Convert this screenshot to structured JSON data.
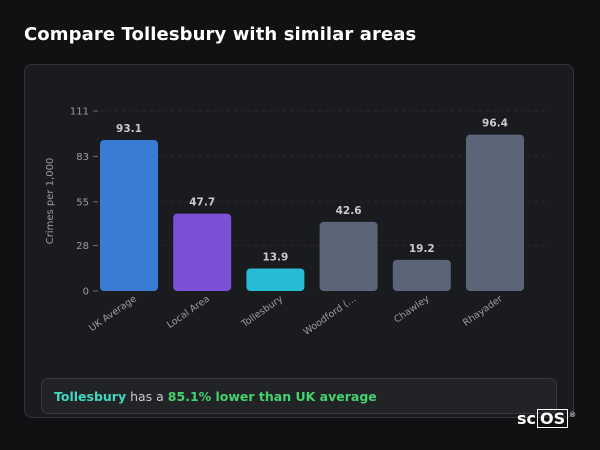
{
  "heading": "Compare Tollesbury with similar areas",
  "summary": {
    "area": "Tollesbury",
    "middle": " has a ",
    "stat": "85.1% lower than UK average"
  },
  "logo": {
    "prefix": "sc",
    "boxed": "OS",
    "reg": "®"
  },
  "chart_data": {
    "type": "bar",
    "ylabel": "Crimes per 1,000",
    "ylim": [
      0,
      111
    ],
    "yticks": [
      0,
      28,
      55,
      83,
      111
    ],
    "grid": false,
    "categories": [
      "UK Average",
      "Local Area",
      "Tollesbury",
      "Woodford (…",
      "Chawley",
      "Rhayader"
    ],
    "values": [
      93.1,
      47.7,
      13.9,
      42.6,
      19.2,
      96.4
    ],
    "value_labels": [
      "93.1",
      "47.7",
      "13.9",
      "42.6",
      "19.2",
      "96.4"
    ],
    "colors": [
      "#3a7bd5",
      "#7b4fd6",
      "#26bcd6",
      "#5b6577",
      "#5b6577",
      "#5b6577"
    ]
  }
}
